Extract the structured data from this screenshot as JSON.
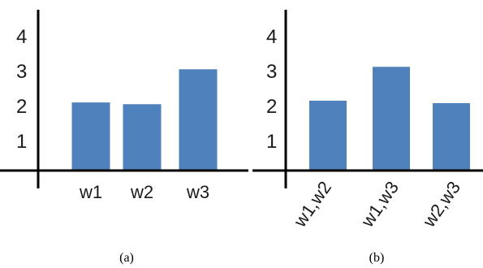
{
  "chart_data": [
    {
      "type": "bar",
      "caption": "(a)",
      "categories": [
        "w1",
        "w2",
        "w3"
      ],
      "values": [
        1.95,
        1.9,
        2.9
      ],
      "y_ticks": [
        "1",
        "2",
        "3",
        "4"
      ],
      "ylim": [
        0,
        4.7
      ],
      "grid": false,
      "bar_color": "#4F81BD"
    },
    {
      "type": "bar",
      "caption": "(b)",
      "categories": [
        "w1,w2",
        "w1,w3",
        "w2,w3"
      ],
      "values": [
        2.0,
        2.97,
        1.93
      ],
      "y_ticks": [
        "1",
        "2",
        "3",
        "4"
      ],
      "ylim": [
        0,
        4.7
      ],
      "grid": false,
      "bar_color": "#4F81BD"
    }
  ]
}
